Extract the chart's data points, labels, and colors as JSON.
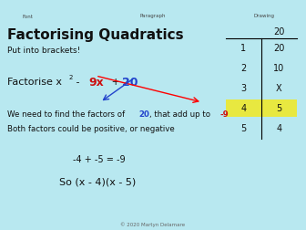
{
  "bg_color": "#b8e8f0",
  "toolbar_color": "#c8c8c8",
  "title": "Factorising Quadratics",
  "subtitle": "Put into brackets!",
  "table_data": [
    [
      "1",
      "20"
    ],
    [
      "2",
      "10"
    ],
    [
      "3",
      "X"
    ],
    [
      "4",
      "5"
    ],
    [
      "5",
      "4"
    ]
  ],
  "highlight_row": 3,
  "highlight_color": "#e8e840",
  "text_black": "#111111",
  "text_red": "#cc1111",
  "text_blue": "#2244cc",
  "line2": "Both factors could be positive, or negative",
  "calc": "-4 + -5 = -9",
  "answer": "So (x - 4)(x - 5)",
  "copyright": "© 2020 Martyn Delamare"
}
